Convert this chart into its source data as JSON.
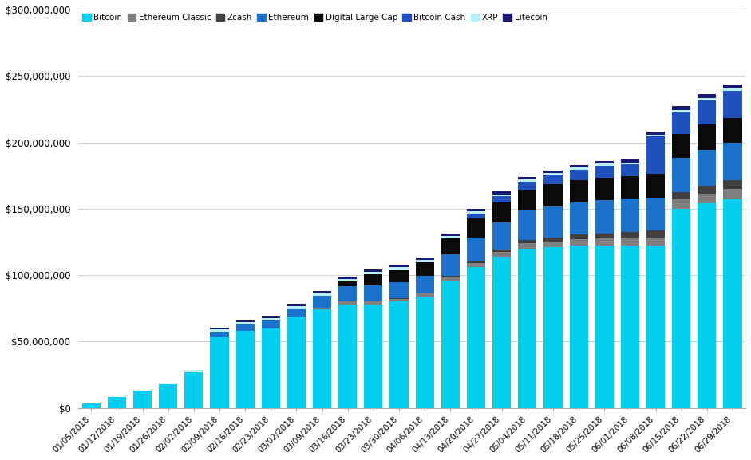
{
  "dates": [
    "01/05/2018",
    "01/12/2018",
    "01/19/2018",
    "01/26/2018",
    "02/02/2018",
    "02/09/2018",
    "02/16/2018",
    "02/23/2018",
    "03/02/2018",
    "03/09/2018",
    "03/16/2018",
    "03/23/2018",
    "03/30/2018",
    "04/06/2018",
    "04/13/2018",
    "04/20/2018",
    "04/27/2018",
    "05/04/2018",
    "05/11/2018",
    "05/18/2018",
    "05/25/2018",
    "06/01/2018",
    "06/08/2018",
    "06/15/2018",
    "06/22/2018",
    "06/29/2018"
  ],
  "series_order": [
    "Bitcoin",
    "Ethereum Classic",
    "Zcash",
    "Ethereum",
    "Digital Large Cap",
    "Bitcoin Cash",
    "XRP",
    "Litecoin"
  ],
  "series": {
    "Bitcoin": [
      3500000,
      8000000,
      13000000,
      18000000,
      27000000,
      53000000,
      58000000,
      60000000,
      68000000,
      74000000,
      78000000,
      78000000,
      80000000,
      84000000,
      96000000,
      106000000,
      114000000,
      120000000,
      121000000,
      122000000,
      122000000,
      122000000,
      122000000,
      150000000,
      154000000,
      157000000
    ],
    "Ethereum Classic": [
      0,
      0,
      0,
      0,
      0,
      0,
      0,
      0,
      0,
      1500000,
      2000000,
      2000000,
      2000000,
      2000000,
      2500000,
      3000000,
      3500000,
      4000000,
      4500000,
      5000000,
      5500000,
      6000000,
      6500000,
      7000000,
      7500000,
      8000000
    ],
    "Zcash": [
      0,
      0,
      0,
      0,
      0,
      0,
      0,
      0,
      0,
      0,
      500000,
      500000,
      500000,
      500000,
      1000000,
      1500000,
      2000000,
      2500000,
      3000000,
      3500000,
      4000000,
      4500000,
      5000000,
      5500000,
      6000000,
      6500000
    ],
    "Ethereum": [
      0,
      0,
      0,
      0,
      0,
      4000000,
      5000000,
      6000000,
      7000000,
      9000000,
      11000000,
      12000000,
      12000000,
      13000000,
      16000000,
      18000000,
      20000000,
      22000000,
      23000000,
      24000000,
      25000000,
      25000000,
      25000000,
      26000000,
      27000000,
      28000000
    ],
    "Digital Large Cap": [
      0,
      0,
      0,
      0,
      0,
      0,
      0,
      0,
      0,
      0,
      4000000,
      8000000,
      9000000,
      10000000,
      12000000,
      14000000,
      15000000,
      16000000,
      17000000,
      17000000,
      17000000,
      17000000,
      18000000,
      18000000,
      19000000,
      19000000
    ],
    "Bitcoin Cash": [
      0,
      0,
      0,
      0,
      0,
      0,
      0,
      0,
      0,
      0,
      0,
      0,
      0,
      0,
      0,
      4000000,
      5000000,
      6000000,
      7000000,
      8000000,
      9000000,
      9000000,
      28000000,
      16000000,
      18000000,
      20000000
    ],
    "XRP": [
      0,
      0,
      0,
      0,
      1500000,
      2000000,
      1500000,
      1500000,
      1500000,
      1500000,
      1500000,
      2000000,
      2500000,
      2000000,
      2000000,
      1500000,
      1500000,
      1500000,
      1500000,
      1500000,
      1500000,
      1500000,
      1500000,
      2000000,
      2000000,
      2000000
    ],
    "Litecoin": [
      0,
      0,
      0,
      0,
      0,
      1500000,
      1500000,
      1500000,
      2000000,
      2000000,
      2000000,
      2000000,
      2000000,
      2000000,
      2000000,
      2000000,
      2000000,
      2000000,
      2000000,
      2000000,
      2000000,
      2000000,
      2000000,
      3000000,
      3000000,
      3000000
    ]
  },
  "colors": {
    "Bitcoin": "#00CFEF",
    "Ethereum Classic": "#7f7f7f",
    "Zcash": "#404040",
    "Ethereum": "#1b72cc",
    "Digital Large Cap": "#0a0a0a",
    "Bitcoin Cash": "#2050c0",
    "XRP": "#b8f0f8",
    "Litecoin": "#191970"
  },
  "ylim": [
    0,
    300000000
  ],
  "yticks": [
    0,
    50000000,
    100000000,
    150000000,
    200000000,
    250000000,
    300000000
  ],
  "background_color": "#ffffff",
  "grid_color": "#d0d0d0"
}
